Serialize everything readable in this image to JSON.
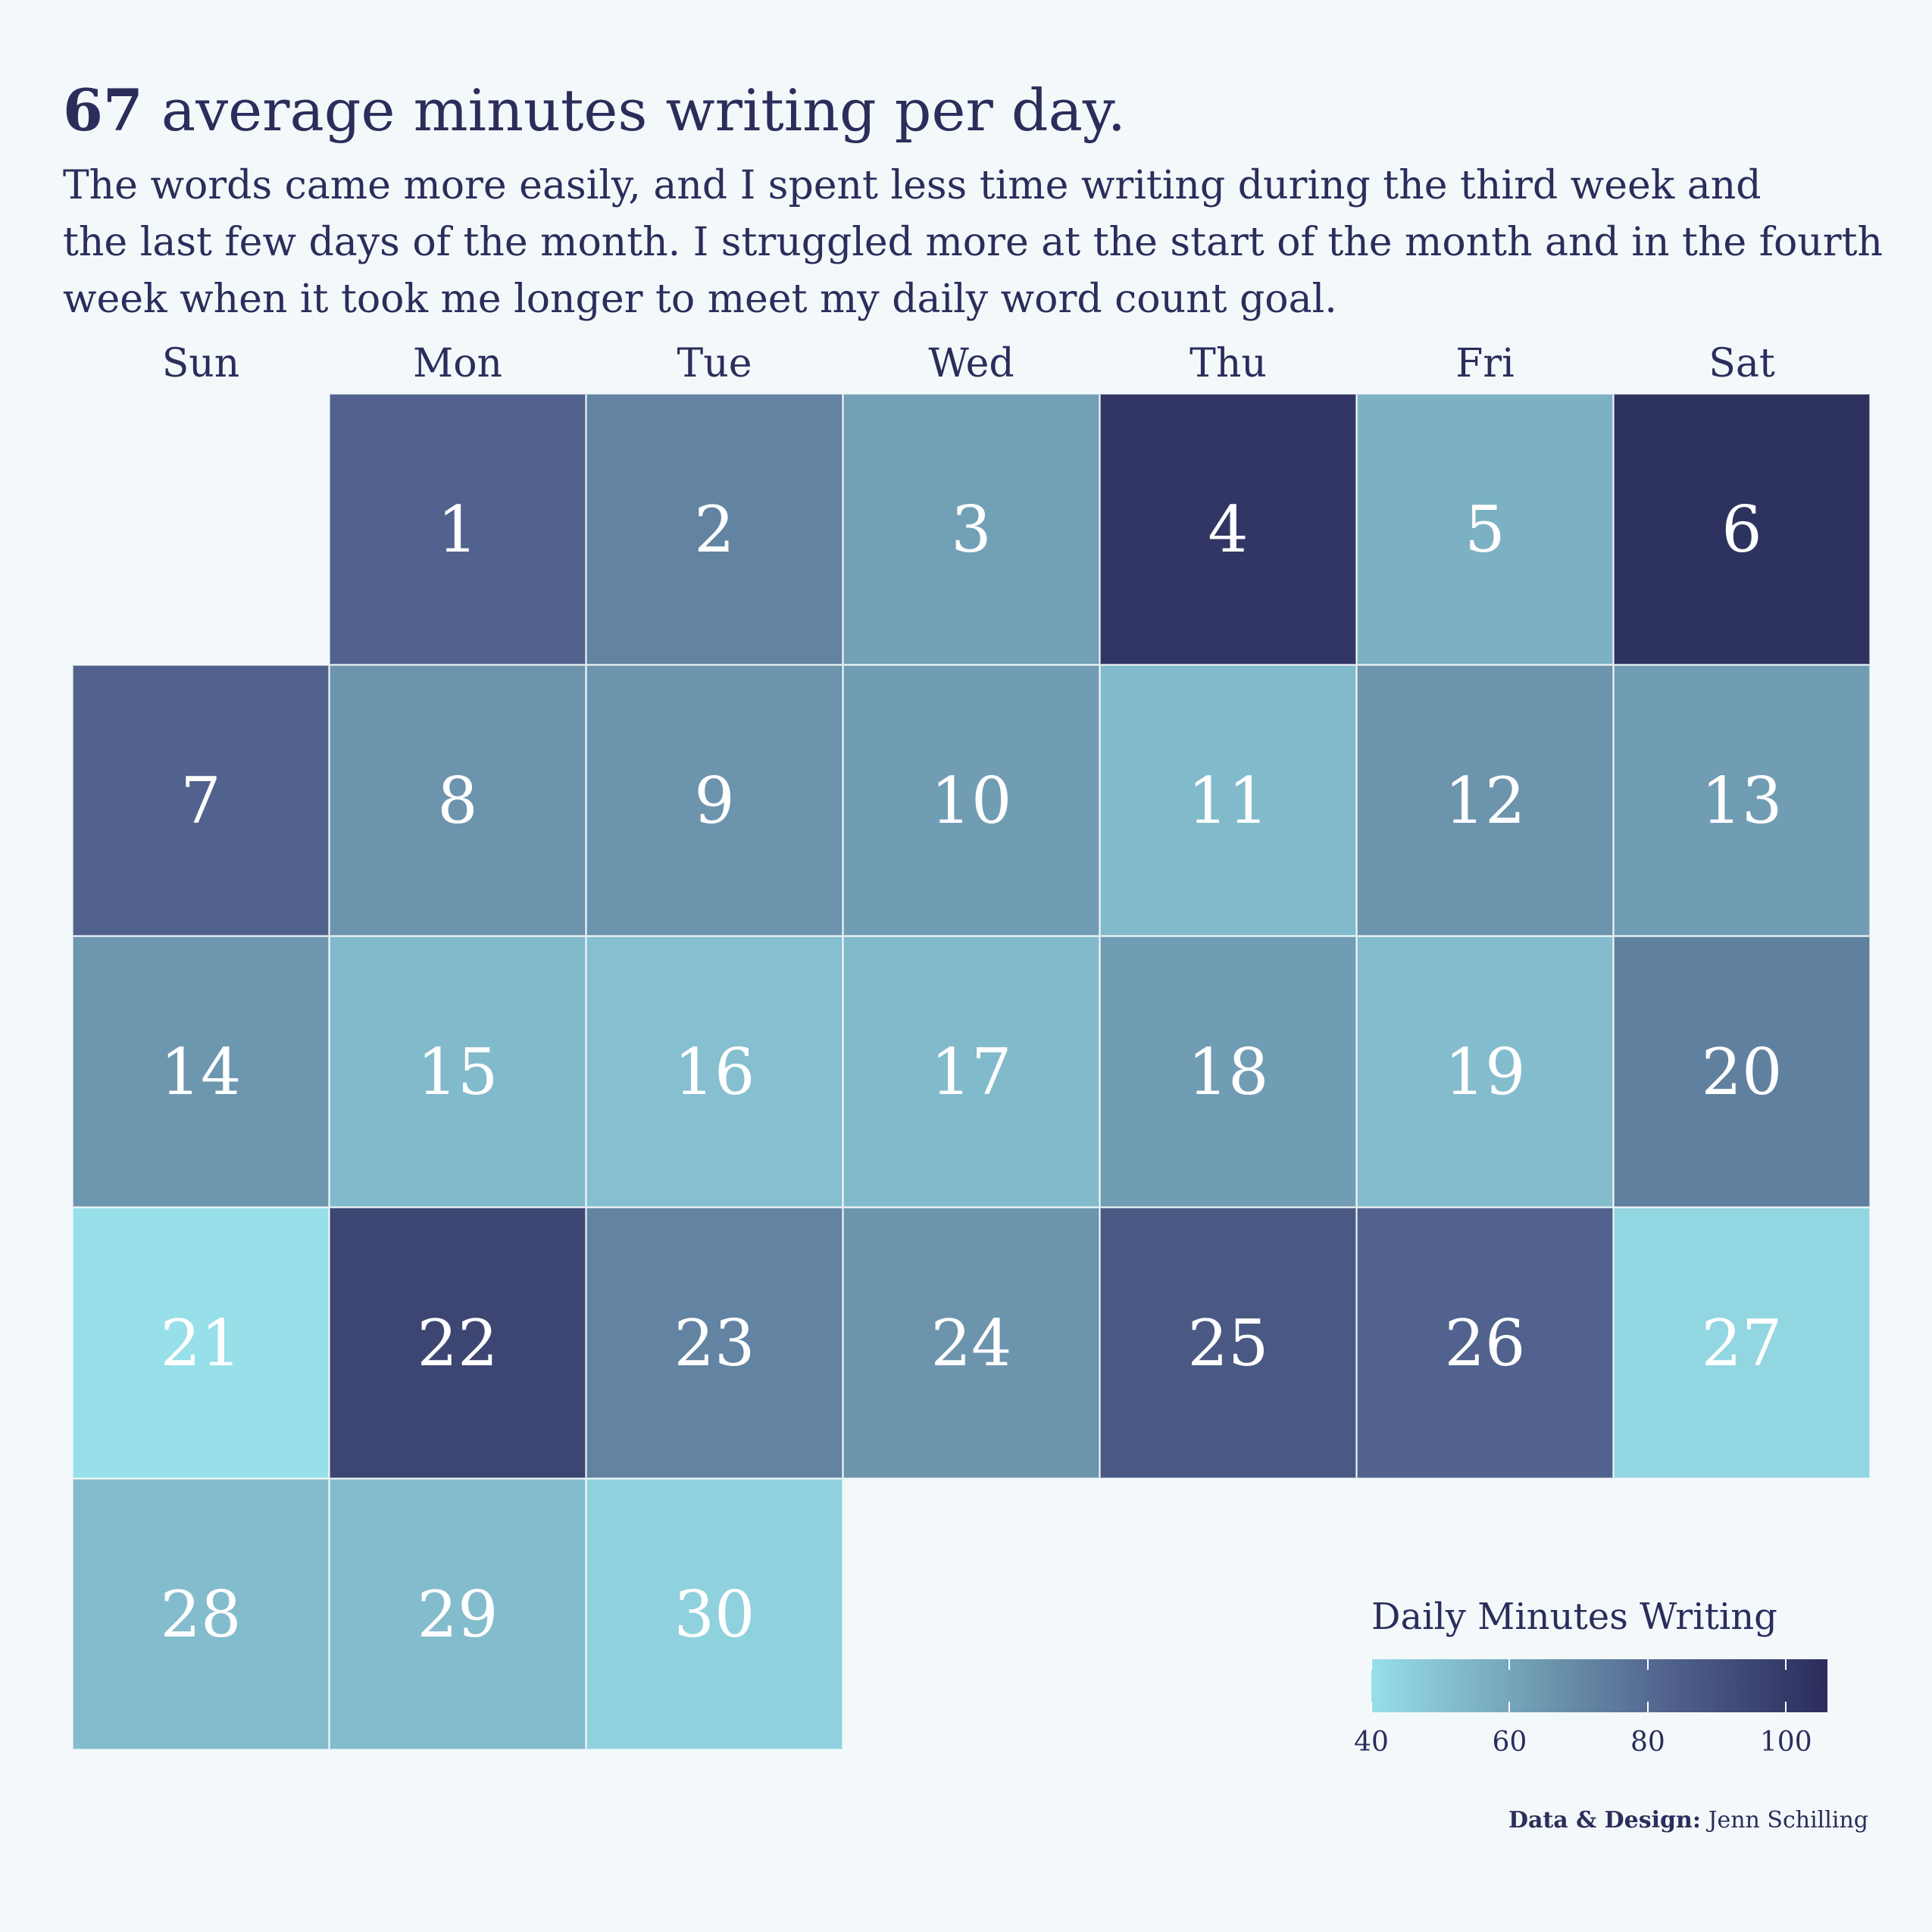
{
  "title": {
    "highlight": "67",
    "text": " average minutes writing per day."
  },
  "subtitle_lines": [
    "The words came more easily, and I spent less time writing during the third week and",
    "the last few days of the month. I struggled more at the start of the month and in the fourth",
    "week when it took me longer to meet my daily word count goal."
  ],
  "weekdays": [
    "Sun",
    "Mon",
    "Tue",
    "Wed",
    "Thu",
    "Fri",
    "Sat"
  ],
  "first_weekday_index": 1,
  "legend": {
    "title": "Daily Minutes Writing",
    "ticks": [
      40,
      60,
      80,
      100
    ],
    "min": 40,
    "max": 106,
    "colors": {
      "low": "#97dfe9",
      "mid1": "#6b93ac",
      "mid2": "#4d5d89",
      "high": "#2b2d5b"
    }
  },
  "caption": {
    "bold": "Data & Design:",
    "text": " Jenn Schilling"
  },
  "chart_data": {
    "type": "heatmap",
    "title": "67 average minutes writing per day.",
    "value_label": "Daily Minutes Writing",
    "days": [
      1,
      2,
      3,
      4,
      5,
      6,
      7,
      8,
      9,
      10,
      11,
      12,
      13,
      14,
      15,
      16,
      17,
      18,
      19,
      20,
      21,
      22,
      23,
      24,
      25,
      26,
      27,
      28,
      29,
      30
    ],
    "values": [
      83,
      72,
      62,
      102,
      56,
      104,
      83,
      66,
      66,
      63,
      53,
      66,
      63,
      65,
      53,
      51,
      53,
      63,
      52,
      73,
      40,
      95,
      72,
      66,
      87,
      83,
      43,
      52,
      52,
      45
    ]
  }
}
